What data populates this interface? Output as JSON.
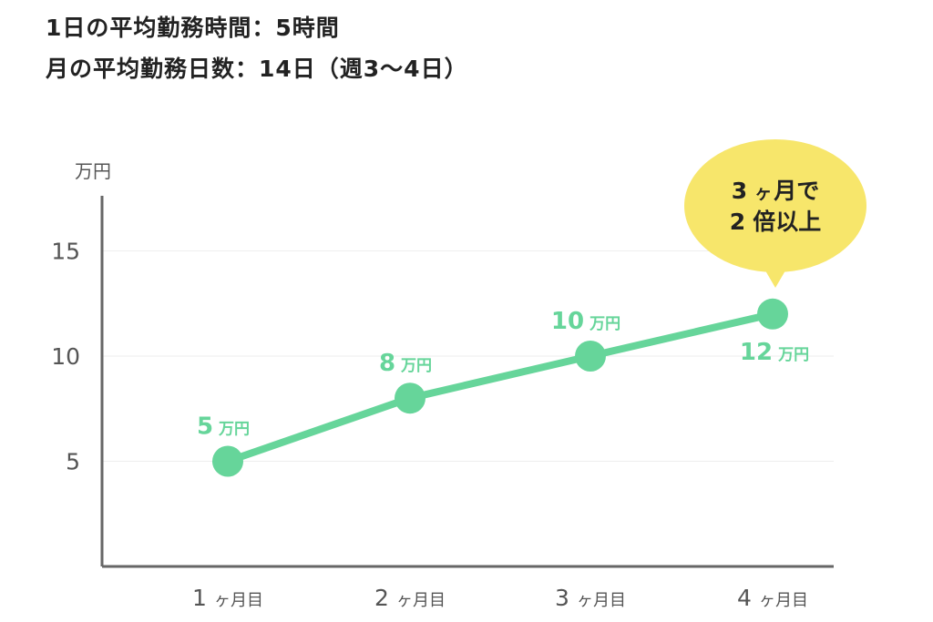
{
  "header": {
    "line1": "1日の平均勤務時間：5時間",
    "line2": "月の平均勤務日数：14日（週3〜4日）"
  },
  "chart_data": {
    "type": "line",
    "categories": [
      "1ヶ月目",
      "2ヶ月目",
      "3ヶ月目",
      "4ヶ月目"
    ],
    "category_parts": [
      {
        "num": "1",
        "suffix": "ヶ月目"
      },
      {
        "num": "2",
        "suffix": "ヶ月目"
      },
      {
        "num": "3",
        "suffix": "ヶ月目"
      },
      {
        "num": "4",
        "suffix": "ヶ月目"
      }
    ],
    "values": [
      5,
      8,
      10,
      12
    ],
    "data_labels": [
      "5",
      "8",
      "10",
      "12"
    ],
    "data_label_unit": "万円",
    "y_unit_label": "万円",
    "yticks": [
      5,
      10,
      15
    ],
    "ylim": [
      0,
      17
    ],
    "grid": true,
    "line_color": "#66d59a",
    "axis_color": "#666666",
    "grid_color": "#eeeeee",
    "annotation": {
      "lines": [
        "3ヶ月で",
        "2倍以上"
      ],
      "line1_parts": [
        "3",
        "ヶ",
        "月で"
      ],
      "line2_parts": [
        "2",
        "倍以上"
      ],
      "color": "#f7e66b",
      "target_category": "4ヶ月目"
    }
  }
}
